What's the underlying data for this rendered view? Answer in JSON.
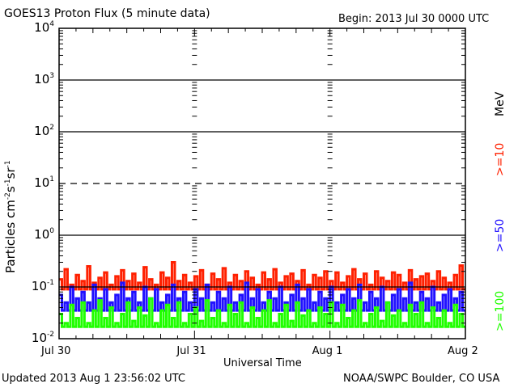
{
  "chart_data": {
    "type": "line",
    "title": "GOES13 Proton Flux (5 minute data)",
    "begin_label": "Begin: 2013 Jul 30 0000 UTC",
    "xlabel": "Universal Time",
    "ylabel": "Particles cm-2s-1sr-1",
    "ylabel_parts": {
      "base": "Particles cm",
      "e1": "-2",
      "s": "s",
      "e2": "-1",
      "sr": "sr",
      "e3": "-1"
    },
    "yscale": "log",
    "ylim": [
      0.01,
      10000
    ],
    "xlim_days": [
      0,
      3
    ],
    "x_tick_labels": [
      "Jul 30",
      "Jul 31",
      "Aug 1",
      "Aug 2"
    ],
    "y_tick_labels": [
      {
        "base": "10",
        "exp": "4"
      },
      {
        "base": "10",
        "exp": "3"
      },
      {
        "base": "10",
        "exp": "2"
      },
      {
        "base": "10",
        "exp": "1"
      },
      {
        "base": "10",
        "exp": "0"
      },
      {
        "base": "10",
        "exp": "-1"
      },
      {
        "base": "10",
        "exp": "-2"
      }
    ],
    "reference_lines": [
      {
        "value": 1000,
        "style": "solid"
      },
      {
        "value": 100,
        "style": "solid"
      },
      {
        "value": 10,
        "style": "dashed"
      },
      {
        "value": 1,
        "style": "solid"
      },
      {
        "value": 0.1,
        "style": "solid"
      }
    ],
    "unit_label": "MeV",
    "series": [
      {
        "name": ">=10",
        "color": "#ff2000",
        "values": [
          0.14,
          0.22,
          0.11,
          0.17,
          0.13,
          0.25,
          0.12,
          0.15,
          0.19,
          0.11,
          0.16,
          0.21,
          0.13,
          0.18,
          0.12,
          0.24,
          0.14,
          0.11,
          0.19,
          0.15,
          0.3,
          0.13,
          0.17,
          0.12,
          0.16,
          0.21,
          0.11,
          0.18,
          0.14,
          0.23,
          0.12,
          0.17,
          0.13,
          0.2,
          0.15,
          0.11,
          0.19,
          0.14,
          0.22,
          0.12,
          0.16,
          0.18,
          0.13,
          0.21,
          0.11,
          0.17,
          0.15,
          0.2,
          0.13,
          0.19,
          0.12,
          0.16,
          0.22,
          0.14,
          0.18,
          0.11,
          0.2,
          0.15,
          0.13,
          0.19,
          0.17,
          0.12,
          0.21,
          0.14,
          0.16,
          0.18,
          0.13,
          0.2,
          0.15,
          0.12,
          0.17,
          0.26
        ]
      },
      {
        "name": ">=50",
        "color": "#2010ff",
        "values": [
          0.07,
          0.05,
          0.1,
          0.06,
          0.08,
          0.05,
          0.11,
          0.06,
          0.09,
          0.05,
          0.07,
          0.12,
          0.06,
          0.08,
          0.05,
          0.1,
          0.06,
          0.09,
          0.05,
          0.07,
          0.11,
          0.06,
          0.08,
          0.05,
          0.09,
          0.06,
          0.11,
          0.05,
          0.08,
          0.06,
          0.1,
          0.05,
          0.07,
          0.12,
          0.06,
          0.09,
          0.05,
          0.08,
          0.06,
          0.1,
          0.05,
          0.07,
          0.11,
          0.06,
          0.09,
          0.05,
          0.08,
          0.06,
          0.1,
          0.05,
          0.07,
          0.09,
          0.06,
          0.11,
          0.05,
          0.08,
          0.06,
          0.1,
          0.05,
          0.07,
          0.09,
          0.06,
          0.12,
          0.05,
          0.08,
          0.06,
          0.1,
          0.05,
          0.07,
          0.09,
          0.06,
          0.08
        ]
      },
      {
        "name": ">=100",
        "color": "#20ff00",
        "values": [
          0.03,
          0.02,
          0.045,
          0.025,
          0.05,
          0.02,
          0.035,
          0.055,
          0.025,
          0.04,
          0.02,
          0.03,
          0.05,
          0.022,
          0.04,
          0.028,
          0.06,
          0.02,
          0.035,
          0.045,
          0.025,
          0.05,
          0.02,
          0.03,
          0.04,
          0.022,
          0.055,
          0.025,
          0.035,
          0.02,
          0.045,
          0.03,
          0.05,
          0.02,
          0.04,
          0.025,
          0.035,
          0.055,
          0.02,
          0.03,
          0.045,
          0.022,
          0.05,
          0.028,
          0.035,
          0.02,
          0.04,
          0.03,
          0.05,
          0.02,
          0.045,
          0.025,
          0.035,
          0.055,
          0.02,
          0.03,
          0.04,
          0.022,
          0.05,
          0.028,
          0.035,
          0.02,
          0.045,
          0.03,
          0.05,
          0.02,
          0.04,
          0.025,
          0.035,
          0.02,
          0.045,
          0.03
        ]
      }
    ]
  },
  "footer": {
    "updated": "Updated 2013 Aug  1 23:56:02 UTC",
    "source": "NOAA/SWPC Boulder, CO USA"
  }
}
